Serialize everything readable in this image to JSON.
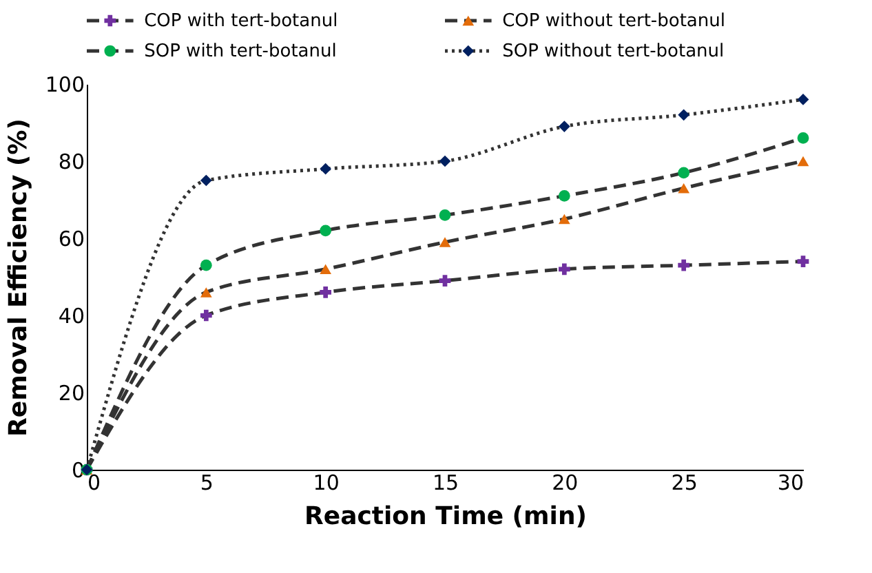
{
  "chart_data": {
    "type": "line",
    "xlabel": "Reaction Time (min)",
    "ylabel": "Removal Efficiency (%)",
    "x": [
      0,
      5,
      10,
      15,
      20,
      25,
      30
    ],
    "series": [
      {
        "name": "COP with tert-botanul",
        "color": "#7030a0",
        "marker": "cross",
        "line_style": "dashed",
        "values": [
          0,
          40,
          46,
          49,
          52,
          53,
          54
        ]
      },
      {
        "name": "COP without tert-botanul",
        "color": "#e36c0a",
        "marker": "triangle",
        "line_style": "dashed",
        "values": [
          0,
          46,
          52,
          59,
          65,
          73,
          80
        ]
      },
      {
        "name": "SOP with tert-botanul",
        "color": "#00b050",
        "marker": "circle",
        "line_style": "dashed",
        "values": [
          0,
          53,
          62,
          66,
          71,
          77,
          86
        ]
      },
      {
        "name": "SOP without tert-botanul",
        "color": "#002060",
        "marker": "diamond",
        "line_style": "dotted",
        "values": [
          0,
          75,
          78,
          80,
          89,
          92,
          96
        ]
      }
    ],
    "xlim": [
      0,
      30
    ],
    "xticks": [
      0,
      5,
      10,
      15,
      20,
      25,
      30
    ],
    "ylim": [
      0,
      100
    ],
    "yticks": [
      0,
      20,
      40,
      60,
      80,
      100
    ],
    "grid": false,
    "legend": "top"
  }
}
